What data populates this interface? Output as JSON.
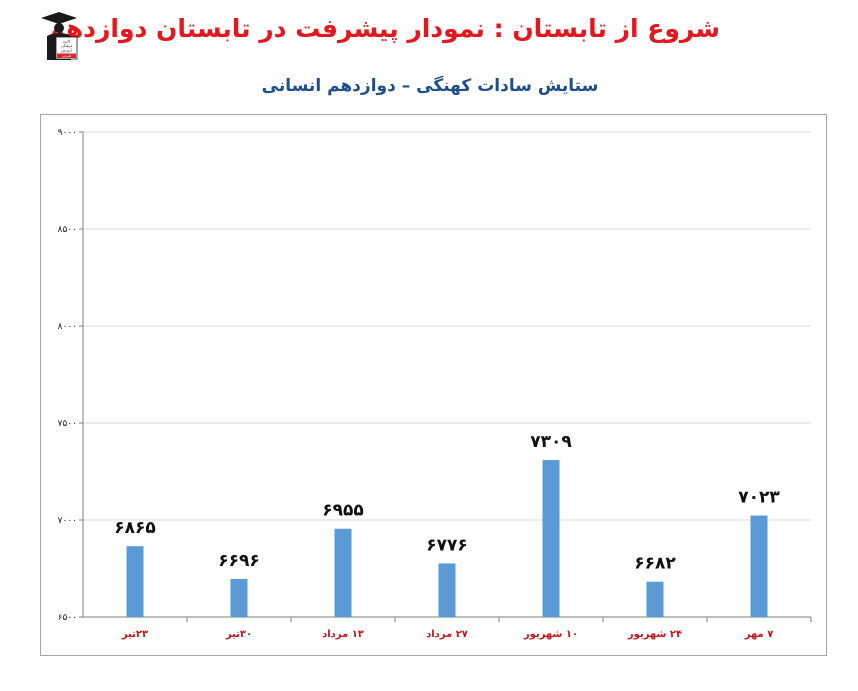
{
  "header": {
    "title": "شروع از تابستان : نمودار پیشرفت در تابستان دوازدهم",
    "subtitle": "ستایش سادات کهنگی – دوازدهم انسانی"
  },
  "logo": {
    "icon": "graduate-figure-icon",
    "lines": [
      "کانون",
      "فرهنگی",
      "آموزش",
      "قلم‌چی"
    ]
  },
  "colors": {
    "bar": "#5b9bd5",
    "title": "#e5161d",
    "subtitle": "#1f4e8c",
    "category_label": "#c0151b",
    "grid": "#d9d9d9"
  },
  "chart_data": {
    "type": "bar",
    "categories": [
      "۲۳تیر",
      "۳۰تیر",
      "۱۳ مرداد",
      "۲۷ مرداد",
      "۱۰ شهریور",
      "۲۴ شهریور",
      "۷ مهر"
    ],
    "values": [
      6865,
      6696,
      6955,
      6776,
      7309,
      6682,
      7023
    ],
    "value_labels": [
      "۶۸۶۵",
      "۶۶۹۶",
      "۶۹۵۵",
      "۶۷۷۶",
      "۷۳۰۹",
      "۶۶۸۲",
      "۷۰۲۳"
    ],
    "yticks": [
      6500,
      7000,
      7500,
      8000,
      8500,
      9000
    ],
    "ytick_labels": [
      "۶۵۰۰",
      "۷۰۰۰",
      "۷۵۰۰",
      "۸۰۰۰",
      "۸۵۰۰",
      "۹۰۰۰"
    ],
    "ylim": [
      6500,
      9000
    ],
    "grid": true,
    "legend": "none"
  }
}
